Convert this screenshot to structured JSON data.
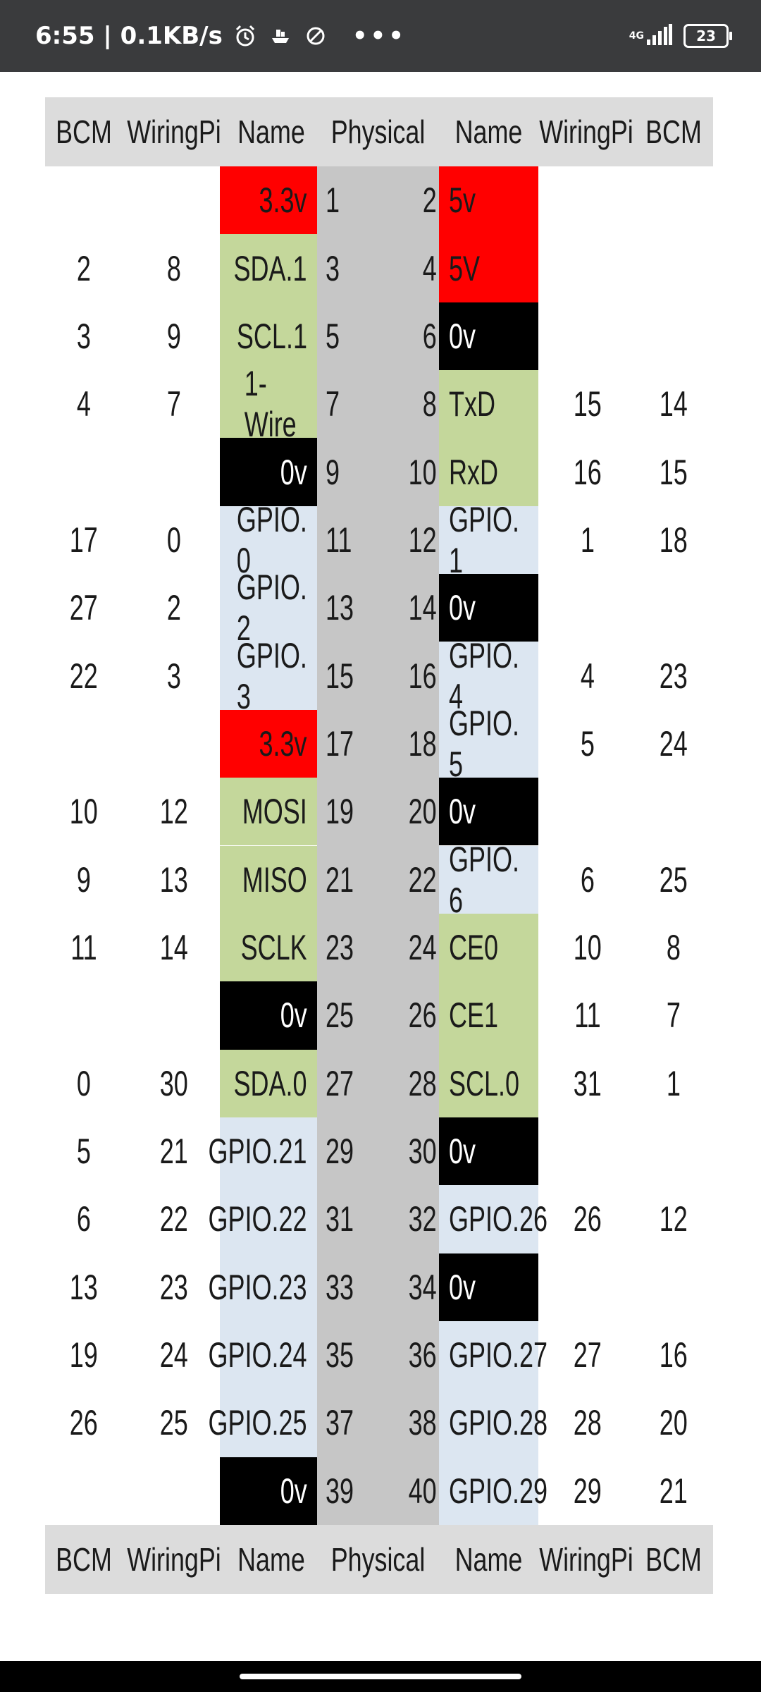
{
  "status_bar": {
    "time_speed": "6:55 | 0.1KB/s",
    "network_type": "4G",
    "battery_level": "23",
    "icons": [
      "alarm-icon",
      "boat-icon",
      "do-not-disturb-icon",
      "more-dots-icon",
      "signal-icon",
      "battery-icon"
    ],
    "more": "•••"
  },
  "table": {
    "headers": [
      "BCM",
      "WiringPi",
      "Name",
      "Physical",
      "Name",
      "WiringPi",
      "BCM"
    ],
    "colors": {
      "red": "#ff0000",
      "green": "#c4d79b",
      "blue": "#dce6f1",
      "black": "#000000",
      "header": "#dcdcdc",
      "physical": "#c6c6c6"
    },
    "rows": [
      {
        "bcm_left": "",
        "wpi_left": "",
        "name_left": "3.3v",
        "fill_left": "red",
        "phys_left": "1",
        "phys_right": "2",
        "name_right": "5v",
        "fill_right": "red",
        "wpi_right": "",
        "bcm_right": ""
      },
      {
        "bcm_left": "2",
        "wpi_left": "8",
        "name_left": "SDA.1",
        "fill_left": "green",
        "phys_left": "3",
        "phys_right": "4",
        "name_right": "5V",
        "fill_right": "red",
        "wpi_right": "",
        "bcm_right": ""
      },
      {
        "bcm_left": "3",
        "wpi_left": "9",
        "name_left": "SCL.1",
        "fill_left": "green",
        "phys_left": "5",
        "phys_right": "6",
        "name_right": "0v",
        "fill_right": "black",
        "wpi_right": "",
        "bcm_right": ""
      },
      {
        "bcm_left": "4",
        "wpi_left": "7",
        "name_left": "1-Wire",
        "fill_left": "green",
        "phys_left": "7",
        "phys_right": "8",
        "name_right": "TxD",
        "fill_right": "green",
        "wpi_right": "15",
        "bcm_right": "14"
      },
      {
        "bcm_left": "",
        "wpi_left": "",
        "name_left": "0v",
        "fill_left": "black",
        "phys_left": "9",
        "phys_right": "10",
        "name_right": "RxD",
        "fill_right": "green",
        "wpi_right": "16",
        "bcm_right": "15"
      },
      {
        "bcm_left": "17",
        "wpi_left": "0",
        "name_left": "GPIO. 0",
        "fill_left": "blue",
        "phys_left": "11",
        "phys_right": "12",
        "name_right": "GPIO. 1",
        "fill_right": "blue",
        "wpi_right": "1",
        "bcm_right": "18"
      },
      {
        "bcm_left": "27",
        "wpi_left": "2",
        "name_left": "GPIO. 2",
        "fill_left": "blue",
        "phys_left": "13",
        "phys_right": "14",
        "name_right": "0v",
        "fill_right": "black",
        "wpi_right": "",
        "bcm_right": ""
      },
      {
        "bcm_left": "22",
        "wpi_left": "3",
        "name_left": "GPIO. 3",
        "fill_left": "blue",
        "phys_left": "15",
        "phys_right": "16",
        "name_right": "GPIO. 4",
        "fill_right": "blue",
        "wpi_right": "4",
        "bcm_right": "23"
      },
      {
        "bcm_left": "",
        "wpi_left": "",
        "name_left": "3.3v",
        "fill_left": "red",
        "phys_left": "17",
        "phys_right": "18",
        "name_right": "GPIO. 5",
        "fill_right": "blue",
        "wpi_right": "5",
        "bcm_right": "24"
      },
      {
        "bcm_left": "10",
        "wpi_left": "12",
        "name_left": "MOSI",
        "fill_left": "green",
        "phys_left": "19",
        "phys_right": "20",
        "name_right": "0v",
        "fill_right": "black",
        "wpi_right": "",
        "bcm_right": ""
      },
      {
        "bcm_left": "9",
        "wpi_left": "13",
        "name_left": "MISO",
        "fill_left": "green",
        "phys_left": "21",
        "phys_right": "22",
        "name_right": "GPIO. 6",
        "fill_right": "blue",
        "wpi_right": "6",
        "bcm_right": "25"
      },
      {
        "bcm_left": "11",
        "wpi_left": "14",
        "name_left": "SCLK",
        "fill_left": "green",
        "phys_left": "23",
        "phys_right": "24",
        "name_right": "CE0",
        "fill_right": "green",
        "wpi_right": "10",
        "bcm_right": "8"
      },
      {
        "bcm_left": "",
        "wpi_left": "",
        "name_left": "0v",
        "fill_left": "black",
        "phys_left": "25",
        "phys_right": "26",
        "name_right": "CE1",
        "fill_right": "green",
        "wpi_right": "11",
        "bcm_right": "7"
      },
      {
        "bcm_left": "0",
        "wpi_left": "30",
        "name_left": "SDA.0",
        "fill_left": "green",
        "phys_left": "27",
        "phys_right": "28",
        "name_right": "SCL.0",
        "fill_right": "green",
        "wpi_right": "31",
        "bcm_right": "1"
      },
      {
        "bcm_left": "5",
        "wpi_left": "21",
        "name_left": "GPIO.21",
        "fill_left": "blue",
        "phys_left": "29",
        "phys_right": "30",
        "name_right": "0v",
        "fill_right": "black",
        "wpi_right": "",
        "bcm_right": ""
      },
      {
        "bcm_left": "6",
        "wpi_left": "22",
        "name_left": "GPIO.22",
        "fill_left": "blue",
        "phys_left": "31",
        "phys_right": "32",
        "name_right": "GPIO.26",
        "fill_right": "blue",
        "wpi_right": "26",
        "bcm_right": "12"
      },
      {
        "bcm_left": "13",
        "wpi_left": "23",
        "name_left": "GPIO.23",
        "fill_left": "blue",
        "phys_left": "33",
        "phys_right": "34",
        "name_right": "0v",
        "fill_right": "black",
        "wpi_right": "",
        "bcm_right": ""
      },
      {
        "bcm_left": "19",
        "wpi_left": "24",
        "name_left": "GPIO.24",
        "fill_left": "blue",
        "phys_left": "35",
        "phys_right": "36",
        "name_right": "GPIO.27",
        "fill_right": "blue",
        "wpi_right": "27",
        "bcm_right": "16"
      },
      {
        "bcm_left": "26",
        "wpi_left": "25",
        "name_left": "GPIO.25",
        "fill_left": "blue",
        "phys_left": "37",
        "phys_right": "38",
        "name_right": "GPIO.28",
        "fill_right": "blue",
        "wpi_right": "28",
        "bcm_right": "20"
      },
      {
        "bcm_left": "",
        "wpi_left": "",
        "name_left": "0v",
        "fill_left": "black",
        "phys_left": "39",
        "phys_right": "40",
        "name_right": "GPIO.29",
        "fill_right": "blue",
        "wpi_right": "29",
        "bcm_right": "21"
      }
    ]
  }
}
